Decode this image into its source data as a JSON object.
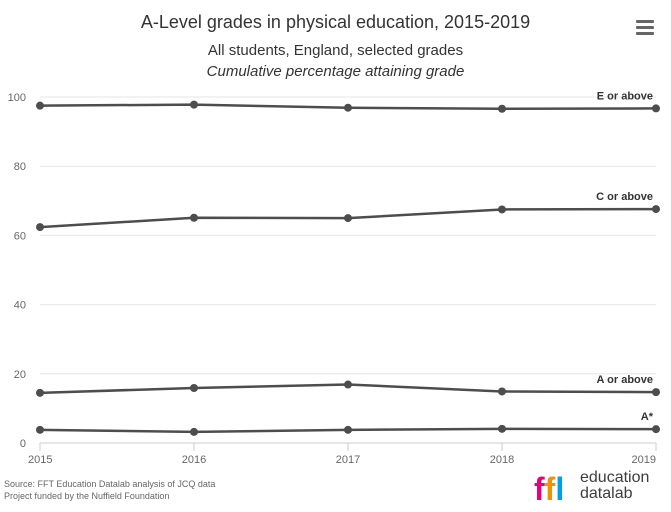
{
  "chart_data": {
    "type": "line",
    "title": "A-Level grades in physical education, 2015-2019",
    "subtitle": "All students, England, selected grades",
    "subtitle2": "Cumulative percentage attaining grade",
    "xlabel": "",
    "ylabel": "",
    "x": [
      "2015",
      "2016",
      "2017",
      "2018",
      "2019"
    ],
    "ylim": [
      0,
      100
    ],
    "yticks": [
      0,
      20,
      40,
      60,
      80,
      100
    ],
    "grid": true,
    "line_color": "#4d4d4d",
    "series": [
      {
        "name": "E or above",
        "values": [
          97.5,
          97.8,
          96.9,
          96.6,
          96.7
        ]
      },
      {
        "name": "C or above",
        "values": [
          62.4,
          65.1,
          65.0,
          67.5,
          67.6
        ]
      },
      {
        "name": "A or above",
        "values": [
          14.5,
          15.9,
          16.9,
          14.9,
          14.7
        ]
      },
      {
        "name": "A*",
        "values": [
          3.8,
          3.2,
          3.8,
          4.1,
          4.0
        ]
      }
    ]
  },
  "source": {
    "line1": "Source: FFT Education Datalab analysis of JCQ data",
    "line2": "Project funded by the Nuffield Foundation"
  },
  "logo": {
    "mark": "ffl",
    "line1": "education",
    "line2": "datalab",
    "colors": [
      "#e6007e",
      "#f39200",
      "#00a0e3"
    ]
  }
}
